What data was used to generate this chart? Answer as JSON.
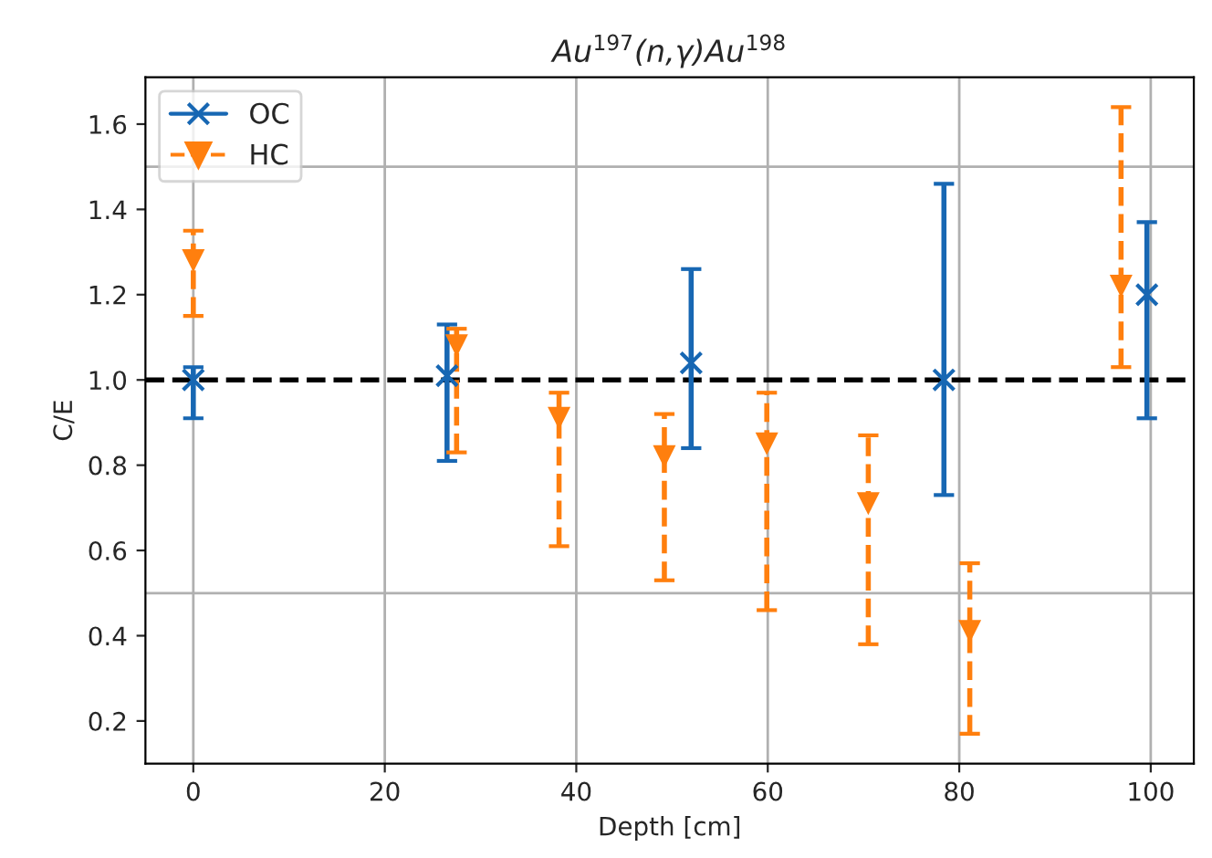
{
  "chart_data": {
    "type": "scatter",
    "title": "Au$^{197}$(n,γ)Au$^{198}$",
    "xlabel": "Depth [cm]",
    "ylabel": "C/E",
    "xlim": [
      -5,
      104.5
    ],
    "xticks": [
      0,
      20,
      40,
      60,
      80,
      100
    ],
    "ylim": [
      0.1,
      1.71
    ],
    "yticks": [
      0.2,
      0.4,
      0.6,
      0.8,
      {
        "value": 1.0,
        "label": "1.0"
      },
      1.2,
      1.4,
      1.6
    ],
    "grid": "x",
    "legend": "top left",
    "series": [
      {
        "name": "OC",
        "color": "#1767b3",
        "marker": "cross",
        "line_style": "solid",
        "x": [
          0,
          26.5,
          52.0,
          78.4,
          99.6
        ],
        "values": [
          1.0,
          1.01,
          1.04,
          1.0,
          1.2
        ],
        "errors": [
          [
            0.91,
            1.03
          ],
          [
            0.81,
            1.13
          ],
          [
            0.84,
            1.26
          ],
          [
            0.73,
            1.46
          ],
          [
            0.91,
            1.37
          ]
        ]
      },
      {
        "name": "HC",
        "color": "#ff7f0e",
        "marker": "triangle",
        "line_style": "dashed",
        "x": [
          0,
          27.5,
          38.2,
          49.2,
          59.9,
          70.5,
          81.1,
          96.9
        ],
        "values": [
          1.28,
          1.08,
          0.91,
          0.82,
          0.85,
          0.71,
          0.41,
          1.22
        ],
        "errors": [
          [
            1.15,
            1.35
          ],
          [
            0.83,
            1.12
          ],
          [
            0.61,
            0.97
          ],
          [
            0.53,
            0.92
          ],
          [
            0.46,
            0.97
          ],
          [
            0.38,
            0.87
          ],
          [
            0.17,
            0.57
          ],
          [
            1.03,
            1.64
          ]
        ]
      }
    ],
    "ref_lines": [
      {
        "axis": "y",
        "value": 1.0,
        "color": "#000000",
        "line_style": "dashed"
      },
      {
        "axis": "y",
        "value": 0.5,
        "color": "#b0b0b0",
        "line_style": "solid"
      },
      {
        "axis": "y",
        "value": 1.5,
        "color": "#b0b0b0",
        "line_style": "solid"
      }
    ]
  }
}
